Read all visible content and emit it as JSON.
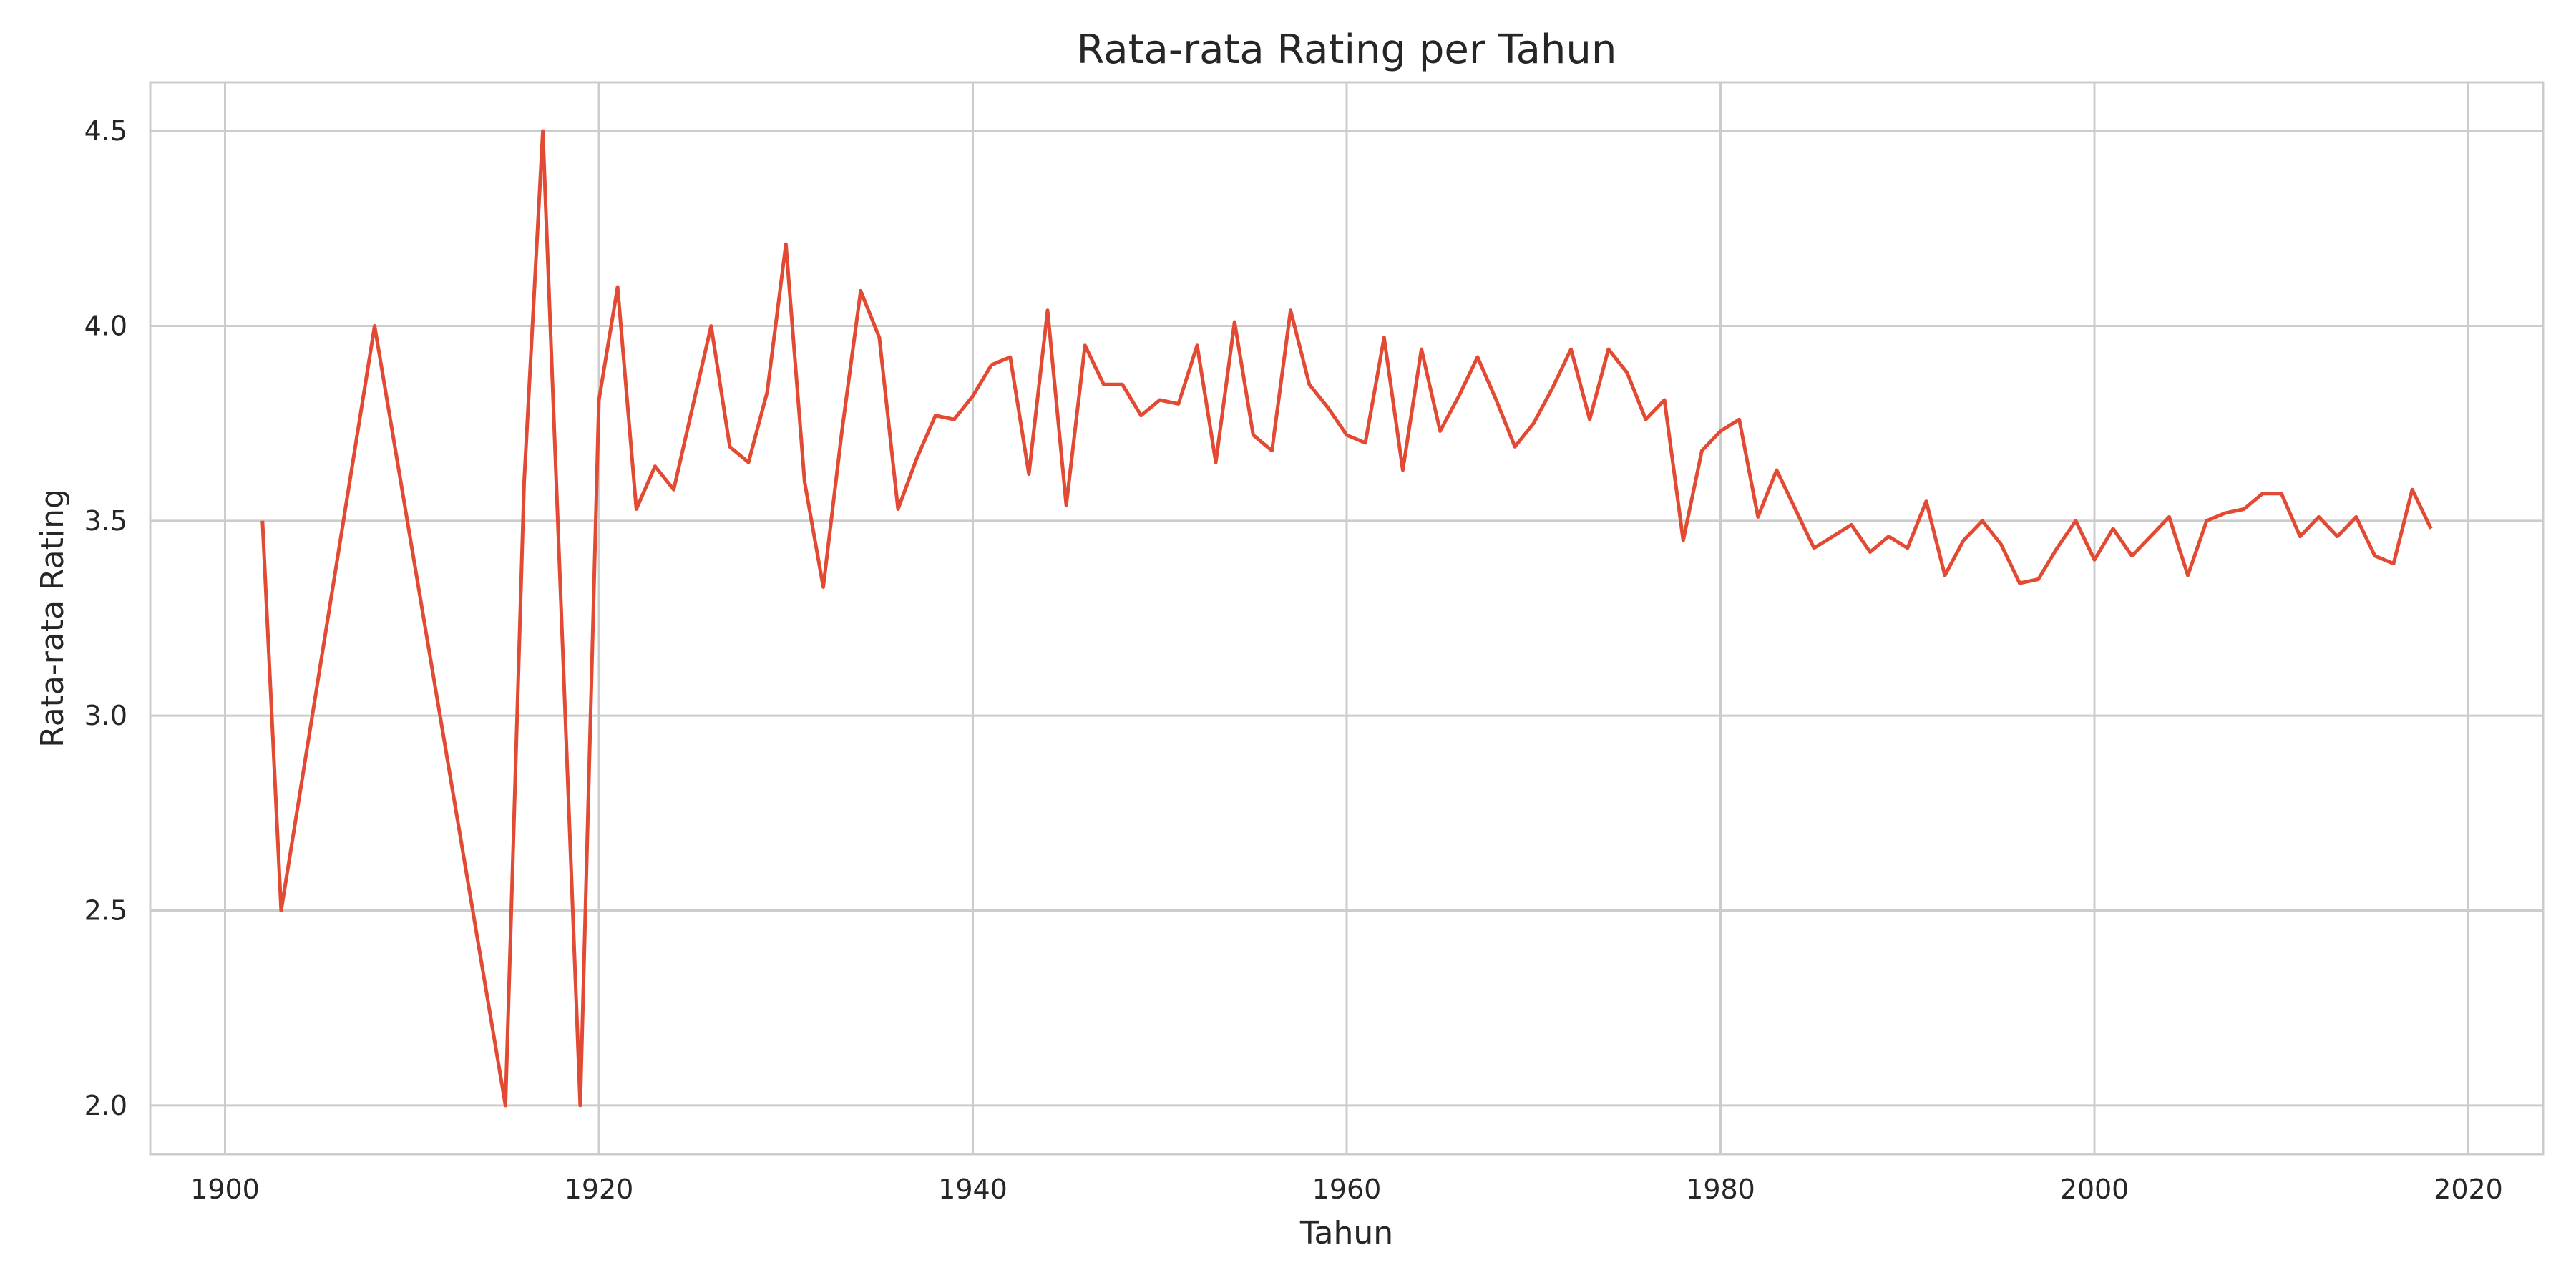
{
  "chart_data": {
    "type": "line",
    "title": "Rata-rata Rating per Tahun",
    "xlabel": "Tahun",
    "ylabel": "Rata-rata Rating",
    "xlim": [
      1896,
      2024
    ],
    "ylim": [
      1.875,
      4.625
    ],
    "x_ticks": [
      1900,
      1920,
      1940,
      1960,
      1980,
      2000,
      2020
    ],
    "y_ticks": [
      2.0,
      2.5,
      3.0,
      3.5,
      4.0,
      4.5
    ],
    "y_tick_labels": [
      "2.0",
      "2.5",
      "3.0",
      "3.5",
      "4.0",
      "4.5"
    ],
    "grid": true,
    "color": "#e24a33",
    "series": [
      {
        "x": [
          1902,
          1903,
          1908,
          1915,
          1916,
          1917,
          1919,
          1920,
          1921,
          1922,
          1923,
          1924,
          1926,
          1927,
          1928,
          1929,
          1930,
          1931,
          1932,
          1933,
          1934,
          1935,
          1936,
          1937,
          1938,
          1939,
          1940,
          1941,
          1942,
          1943,
          1944,
          1945,
          1946,
          1947,
          1948,
          1949,
          1950,
          1951,
          1952,
          1953,
          1954,
          1955,
          1956,
          1957,
          1958,
          1959,
          1960,
          1961,
          1962,
          1963,
          1964,
          1965,
          1966,
          1967,
          1968,
          1969,
          1970,
          1971,
          1972,
          1973,
          1974,
          1975,
          1976,
          1977,
          1978,
          1979,
          1980,
          1981,
          1982,
          1983,
          1984,
          1985,
          1986,
          1987,
          1988,
          1989,
          1990,
          1991,
          1992,
          1993,
          1994,
          1995,
          1996,
          1997,
          1998,
          1999,
          2000,
          2001,
          2002,
          2003,
          2004,
          2005,
          2006,
          2007,
          2008,
          2009,
          2010,
          2011,
          2012,
          2013,
          2014,
          2015,
          2016,
          2017,
          2018
        ],
        "values": [
          3.5,
          2.5,
          4.0,
          2.0,
          3.6,
          4.5,
          2.0,
          3.81,
          4.1,
          3.53,
          3.64,
          3.58,
          4.0,
          3.69,
          3.65,
          3.83,
          4.21,
          3.6,
          3.33,
          3.73,
          4.09,
          3.97,
          3.53,
          3.66,
          3.77,
          3.76,
          3.82,
          3.9,
          3.92,
          3.62,
          4.04,
          3.54,
          3.95,
          3.85,
          3.85,
          3.77,
          3.81,
          3.8,
          3.95,
          3.65,
          4.01,
          3.72,
          3.68,
          4.04,
          3.85,
          3.79,
          3.72,
          3.7,
          3.97,
          3.63,
          3.94,
          3.73,
          3.82,
          3.92,
          3.81,
          3.69,
          3.75,
          3.84,
          3.94,
          3.76,
          3.94,
          3.88,
          3.76,
          3.81,
          3.45,
          3.68,
          3.73,
          3.76,
          3.51,
          3.63,
          3.53,
          3.43,
          3.46,
          3.49,
          3.42,
          3.46,
          3.43,
          3.55,
          3.36,
          3.45,
          3.5,
          3.44,
          3.34,
          3.35,
          3.43,
          3.5,
          3.4,
          3.48,
          3.41,
          3.46,
          3.51,
          3.36,
          3.5,
          3.52,
          3.53,
          3.57,
          3.57,
          3.46,
          3.51,
          3.46,
          3.51,
          3.41,
          3.39,
          3.58,
          3.48
        ]
      }
    ]
  }
}
